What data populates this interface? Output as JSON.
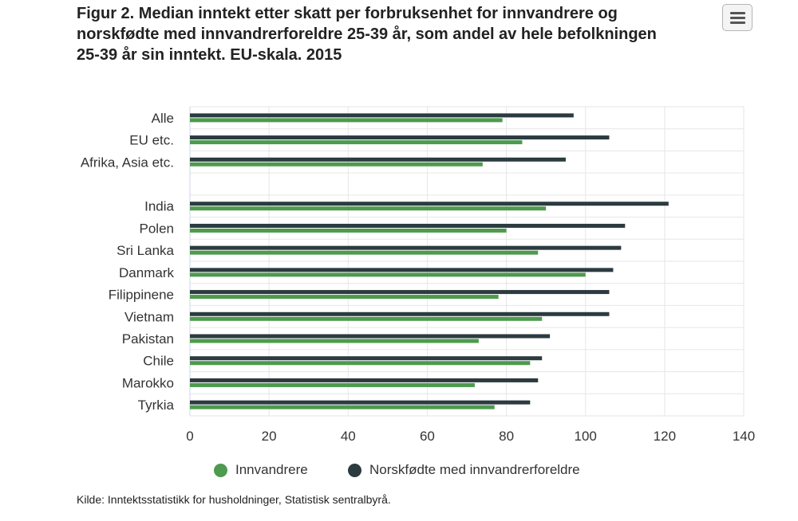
{
  "title": "Figur 2. Median inntekt etter skatt per forbruksenhet for innvandrere og norskfødte med innvandrerforeldre 25-39 år, som andel av hele befolkningen 25-39 år sin inntekt. EU-skala. 2015",
  "menu_icon": "hamburger-menu-icon",
  "source": "Kilde: Inntektsstatistikk for husholdninger, Statistisk sentralbyrå.",
  "colors": {
    "innvandrere": "#4e9a4e",
    "norskfodte": "#2b3b40",
    "grid": "#e6e6e6"
  },
  "chart_data": {
    "type": "bar",
    "orientation": "horizontal",
    "categories": [
      "Alle",
      "EU etc.",
      "Afrika, Asia etc.",
      "",
      "India",
      "Polen",
      "Sri Lanka",
      "Danmark",
      "Filippinene",
      "Vietnam",
      "Pakistan",
      "Chile",
      "Marokko",
      "Tyrkia"
    ],
    "series": [
      {
        "name": "Innvandrere",
        "values": [
          79,
          84,
          74,
          null,
          90,
          80,
          88,
          100,
          78,
          89,
          73,
          86,
          72,
          77
        ]
      },
      {
        "name": "Norskfødte med innvandrerforeldre",
        "values": [
          97,
          106,
          95,
          null,
          121,
          110,
          109,
          107,
          106,
          106,
          91,
          89,
          88,
          86
        ]
      }
    ],
    "xlim": [
      0,
      140
    ],
    "xticks": [
      0,
      20,
      40,
      60,
      80,
      100,
      120,
      140
    ],
    "grid": true,
    "legend": "bottom"
  }
}
